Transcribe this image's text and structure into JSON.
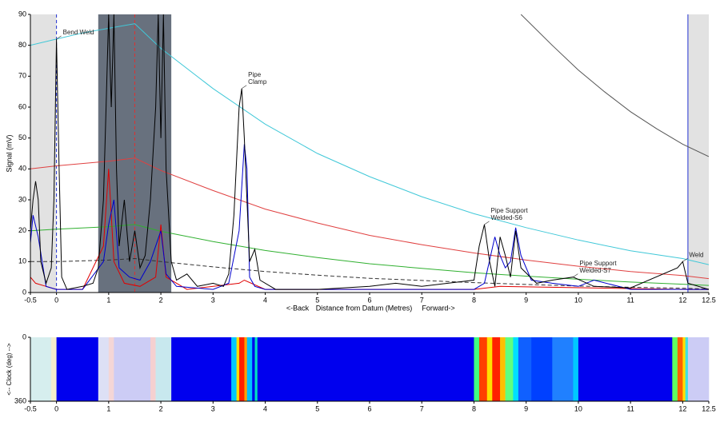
{
  "chart_data": [
    {
      "type": "line",
      "ylabel": "Signal (mV)",
      "xlabel_back": "<-Back",
      "xlabel": "Distance from Datum (Metres)",
      "xlabel_forward": "Forward->",
      "xlim": [
        -0.5,
        12.5
      ],
      "xticks": [
        -0.5,
        0,
        1,
        2,
        3,
        4,
        5,
        6,
        7,
        8,
        9,
        10,
        11,
        12,
        12.5
      ],
      "ylim": [
        0,
        90
      ],
      "yticks": [
        0,
        10,
        20,
        30,
        40,
        50,
        60,
        70,
        80,
        90
      ],
      "shaded_regions": [
        {
          "x0": -0.5,
          "x1": 0,
          "color": "#e2e2e2"
        },
        {
          "x0": 12.1,
          "x1": 12.5,
          "color": "#e2e2e2"
        },
        {
          "x0": 0.8,
          "x1": 2.2,
          "color": "#68717e"
        }
      ],
      "vlines": [
        {
          "x": 0,
          "color": "#2030d0",
          "dashed": true
        },
        {
          "x": 1.5,
          "color": "#e03030",
          "dashed": true
        },
        {
          "x": 12.1,
          "color": "#2030d0",
          "dashed": false
        }
      ],
      "series": [
        {
          "color": "#40c8d8",
          "dashed": false,
          "x": [
            -0.5,
            0,
            0.5,
            1,
            1.5,
            2,
            3,
            4,
            5,
            6,
            7,
            8,
            9,
            10,
            11,
            12,
            12.5
          ],
          "values": [
            80,
            82,
            84,
            85.5,
            87,
            79,
            66,
            54.5,
            45,
            37.5,
            31,
            25.5,
            21,
            17,
            13.5,
            11,
            9
          ]
        },
        {
          "color": "#e04040",
          "dashed": false,
          "x": [
            -0.5,
            0,
            1,
            1.5,
            2,
            3,
            4,
            5,
            6,
            7,
            8,
            9,
            10,
            11,
            12,
            12.5
          ],
          "values": [
            40,
            41,
            42.5,
            43.5,
            39.5,
            33,
            27,
            22.5,
            18.5,
            15.5,
            12.8,
            10.5,
            8.5,
            6.8,
            5.5,
            4.5
          ]
        },
        {
          "color": "#30b030",
          "dashed": false,
          "x": [
            -0.5,
            0,
            1,
            1.5,
            2,
            3,
            4,
            5,
            6,
            7,
            8,
            9,
            10,
            11,
            12,
            12.5
          ],
          "values": [
            20,
            20.5,
            21.3,
            22,
            19.8,
            16.5,
            13.6,
            11.3,
            9.3,
            7.8,
            6.4,
            5.3,
            4.3,
            3.4,
            2.7,
            2.3
          ]
        },
        {
          "color": "#333333",
          "dashed": true,
          "x": [
            -0.5,
            0,
            1,
            1.5,
            2,
            3,
            4,
            5,
            6,
            7,
            8,
            9,
            10,
            11,
            12,
            12.5
          ],
          "values": [
            10,
            10,
            10.5,
            11,
            10,
            8.3,
            6.8,
            5.6,
            4.6,
            3.9,
            3.2,
            2.6,
            2.1,
            1.7,
            1.4,
            1.1
          ]
        },
        {
          "color": "#555555",
          "dashed": false,
          "x": [
            8.9,
            9.5,
            10,
            10.5,
            11,
            11.5,
            12,
            12.5
          ],
          "values": [
            90,
            80,
            72,
            65,
            58.5,
            53,
            48,
            44
          ]
        },
        {
          "color": "#e00000",
          "dashed": false,
          "x": [
            -0.5,
            -0.4,
            -0.2,
            0,
            0.5,
            0.9,
            1.0,
            1.05,
            1.1,
            1.3,
            1.6,
            1.9,
            2.0,
            2.1,
            2.5,
            3.5,
            3.6,
            4,
            8,
            8.5,
            12,
            12.5
          ],
          "values": [
            5,
            3,
            2,
            1,
            1,
            15,
            40,
            25,
            10,
            3,
            2,
            5,
            22,
            5,
            1,
            3,
            4,
            1,
            1,
            2,
            1,
            1
          ]
        },
        {
          "color": "#0000cc",
          "dashed": false,
          "x": [
            -0.5,
            -0.45,
            -0.35,
            -0.2,
            0,
            0.5,
            0.9,
            1.0,
            1.1,
            1.2,
            1.4,
            1.6,
            1.8,
            2.0,
            2.1,
            2.3,
            3.0,
            3.3,
            3.5,
            3.6,
            3.65,
            3.7,
            3.8,
            4,
            6,
            8,
            8.2,
            8.4,
            8.5,
            8.6,
            8.7,
            8.8,
            8.9,
            9.1,
            9.5,
            10,
            10.3,
            11,
            12,
            12.5
          ],
          "values": [
            16,
            25,
            18,
            2,
            1,
            1,
            10,
            22,
            30,
            8,
            5,
            4,
            10,
            20,
            6,
            2,
            1,
            3,
            20,
            48,
            40,
            5,
            2,
            1,
            1,
            1,
            3,
            18,
            12,
            8,
            10,
            21,
            12,
            4,
            3,
            2,
            4,
            1,
            1,
            1
          ]
        },
        {
          "color": "#000000",
          "dashed": false,
          "x": [
            -0.5,
            -0.45,
            -0.4,
            -0.35,
            -0.3,
            -0.2,
            -0.1,
            -0.05,
            0,
            0.05,
            0.1,
            0.2,
            0.5,
            0.7,
            0.8,
            0.9,
            0.95,
            1.0,
            1.05,
            1.1,
            1.15,
            1.2,
            1.3,
            1.4,
            1.5,
            1.6,
            1.7,
            1.8,
            1.9,
            1.95,
            2.0,
            2.05,
            2.1,
            2.2,
            2.3,
            2.5,
            2.7,
            3.0,
            3.2,
            3.3,
            3.4,
            3.5,
            3.55,
            3.6,
            3.7,
            3.8,
            3.9,
            4.2,
            5,
            6,
            6.5,
            7,
            7.5,
            8.0,
            8.1,
            8.2,
            8.3,
            8.4,
            8.5,
            8.6,
            8.7,
            8.8,
            8.9,
            9.2,
            9.5,
            9.9,
            10.3,
            11,
            11.9,
            12.0,
            12.1,
            12.5
          ],
          "values": [
            20,
            30,
            36,
            30,
            10,
            3,
            8,
            30,
            82,
            40,
            5,
            1,
            2,
            3,
            8,
            30,
            60,
            90,
            60,
            90,
            40,
            15,
            30,
            10,
            20,
            8,
            12,
            30,
            60,
            90,
            50,
            90,
            40,
            10,
            4,
            6,
            2,
            3,
            2,
            6,
            25,
            60,
            66,
            50,
            10,
            14,
            4,
            1,
            1,
            2,
            3,
            2,
            3,
            4,
            15,
            22,
            10,
            2,
            18,
            12,
            5,
            20,
            8,
            3,
            4,
            5,
            2,
            1.5,
            8,
            10,
            3,
            1
          ]
        }
      ],
      "annotations": [
        {
          "lines": [
            "Bend Weld"
          ],
          "x": 0,
          "y": 82
        },
        {
          "lines": [
            "Pipe",
            "Clamp"
          ],
          "x": 3.55,
          "y": 66
        },
        {
          "lines": [
            "Pipe Support",
            "Welded-S6"
          ],
          "x": 8.2,
          "y": 22
        },
        {
          "lines": [
            "Pipe Support",
            "Welded-S7"
          ],
          "x": 9.9,
          "y": 5
        },
        {
          "lines": [
            "Weld"
          ],
          "x": 12.0,
          "y": 10
        }
      ]
    },
    {
      "type": "heatmap",
      "ylabel": "<-- Clock (deg) -->",
      "xlim": [
        -0.5,
        12.5
      ],
      "xticks": [
        -0.5,
        0,
        1,
        2,
        3,
        4,
        5,
        6,
        7,
        8,
        9,
        10,
        11,
        12,
        12.5
      ],
      "ylim": [
        0,
        360
      ],
      "yticks": [
        0,
        360
      ],
      "bands": [
        {
          "x0": -0.5,
          "x1": -0.1,
          "color": "#d6eeee"
        },
        {
          "x0": -0.1,
          "x1": 0,
          "color": "#f4eecc"
        },
        {
          "x0": 0,
          "x1": 0.8,
          "color": "#0000ee"
        },
        {
          "x0": 0.8,
          "x1": 1.0,
          "color": "#dde0f5"
        },
        {
          "x0": 1.0,
          "x1": 1.1,
          "color": "#f4d6d6"
        },
        {
          "x0": 1.1,
          "x1": 1.8,
          "color": "#ccccf5"
        },
        {
          "x0": 1.8,
          "x1": 1.9,
          "color": "#f5d0d0"
        },
        {
          "x0": 1.9,
          "x1": 2.2,
          "color": "#c8e8ee"
        },
        {
          "x0": 2.2,
          "x1": 3.35,
          "color": "#0000ee"
        },
        {
          "x0": 3.35,
          "x1": 3.45,
          "color": "#00c8ff"
        },
        {
          "x0": 3.45,
          "x1": 3.5,
          "color": "#ffe000"
        },
        {
          "x0": 3.5,
          "x1": 3.6,
          "color": "#ff2000"
        },
        {
          "x0": 3.6,
          "x1": 3.65,
          "color": "#ffa000"
        },
        {
          "x0": 3.65,
          "x1": 3.75,
          "color": "#00c0ff"
        },
        {
          "x0": 3.75,
          "x1": 3.8,
          "color": "#0000ee"
        },
        {
          "x0": 3.8,
          "x1": 3.85,
          "color": "#00e0c0"
        },
        {
          "x0": 3.85,
          "x1": 8.0,
          "color": "#0000ee"
        },
        {
          "x0": 8.0,
          "x1": 8.1,
          "color": "#40ff80"
        },
        {
          "x0": 8.1,
          "x1": 8.25,
          "color": "#ff4000"
        },
        {
          "x0": 8.25,
          "x1": 8.35,
          "color": "#ffe000"
        },
        {
          "x0": 8.35,
          "x1": 8.5,
          "color": "#ff2000"
        },
        {
          "x0": 8.5,
          "x1": 8.6,
          "color": "#ffc000"
        },
        {
          "x0": 8.6,
          "x1": 8.75,
          "color": "#60ff80"
        },
        {
          "x0": 8.75,
          "x1": 8.85,
          "color": "#00e0ff"
        },
        {
          "x0": 8.85,
          "x1": 9.1,
          "color": "#1060ff"
        },
        {
          "x0": 9.1,
          "x1": 9.5,
          "color": "#0040ff"
        },
        {
          "x0": 9.5,
          "x1": 9.9,
          "color": "#2080ff"
        },
        {
          "x0": 9.9,
          "x1": 10.0,
          "color": "#00c8ff"
        },
        {
          "x0": 10.0,
          "x1": 11.8,
          "color": "#0000ee"
        },
        {
          "x0": 11.8,
          "x1": 11.9,
          "color": "#60ff60"
        },
        {
          "x0": 11.9,
          "x1": 12.0,
          "color": "#ff6000"
        },
        {
          "x0": 12.0,
          "x1": 12.05,
          "color": "#ffe000"
        },
        {
          "x0": 12.05,
          "x1": 12.1,
          "color": "#40e0e0"
        },
        {
          "x0": 12.1,
          "x1": 12.5,
          "color": "#ccccf5"
        }
      ]
    }
  ]
}
